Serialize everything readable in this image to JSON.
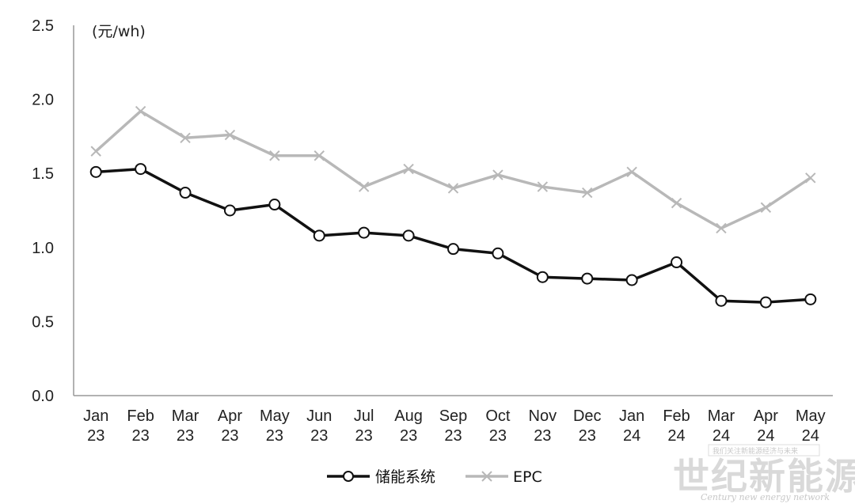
{
  "chart_data": {
    "type": "line",
    "unit_label": "(元/wh)",
    "categories": [
      [
        "Jan",
        "23"
      ],
      [
        "Feb",
        "23"
      ],
      [
        "Mar",
        "23"
      ],
      [
        "Apr",
        "23"
      ],
      [
        "May",
        "23"
      ],
      [
        "Jun",
        "23"
      ],
      [
        "Jul",
        "23"
      ],
      [
        "Aug",
        "23"
      ],
      [
        "Sep",
        "23"
      ],
      [
        "Oct",
        "23"
      ],
      [
        "Nov",
        "23"
      ],
      [
        "Dec",
        "23"
      ],
      [
        "Jan",
        "24"
      ],
      [
        "Feb",
        "24"
      ],
      [
        "Mar",
        "24"
      ],
      [
        "Apr",
        "24"
      ],
      [
        "May",
        "24"
      ]
    ],
    "ylim": [
      0,
      2.5
    ],
    "yticks": [
      "0.0",
      "0.5",
      "1.0",
      "1.5",
      "2.0",
      "2.5"
    ],
    "grid": false,
    "legend_position": "bottom-center",
    "series": [
      {
        "name": "储能系统",
        "color": "#111111",
        "marker": "circle",
        "values": [
          1.51,
          1.53,
          1.37,
          1.25,
          1.29,
          1.08,
          1.1,
          1.08,
          0.99,
          0.96,
          0.8,
          0.79,
          0.78,
          0.9,
          0.64,
          0.63,
          0.65
        ]
      },
      {
        "name": "EPC",
        "color": "#b8b8b8",
        "marker": "x",
        "values": [
          1.65,
          1.92,
          1.74,
          1.76,
          1.62,
          1.62,
          1.41,
          1.53,
          1.4,
          1.49,
          1.41,
          1.37,
          1.51,
          1.3,
          1.13,
          1.27,
          1.47
        ]
      }
    ]
  },
  "watermark": {
    "chinese": "世纪新能源网",
    "english": "Century new energy network",
    "tagline": "我们关注新能源经济与未来"
  }
}
